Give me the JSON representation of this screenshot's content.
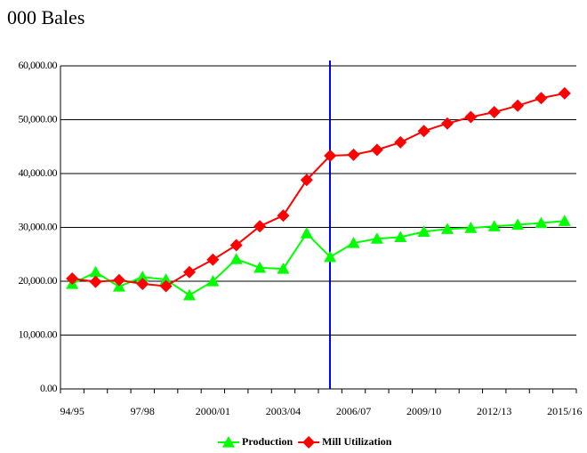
{
  "chart_data": {
    "type": "line",
    "title": "000 Bales",
    "categories": [
      "94/95",
      null,
      null,
      "97/98",
      null,
      null,
      "2000/01",
      null,
      null,
      "2003/04",
      null,
      null,
      "2006/07",
      null,
      null,
      "2009/10",
      null,
      null,
      "2012/13",
      null,
      null,
      "2015/16"
    ],
    "series": [
      {
        "name": "Production",
        "color": "#00ff00",
        "marker": "triangle",
        "values": [
          19500,
          21700,
          19000,
          20800,
          20300,
          17400,
          20000,
          24100,
          22500,
          22300,
          28900,
          24500,
          27100,
          27900,
          28200,
          29200,
          29700,
          29900,
          30200,
          30500,
          30800,
          31200
        ]
      },
      {
        "name": "Mill Utilization",
        "color": "#ff0000",
        "marker": "diamond",
        "values": [
          20500,
          19900,
          20200,
          19500,
          19100,
          21700,
          24000,
          26700,
          30200,
          32200,
          38800,
          43300,
          43500,
          44400,
          45800,
          47900,
          49300,
          50500,
          51400,
          52600,
          54000,
          54900
        ]
      }
    ],
    "ylim": [
      0,
      60000
    ],
    "yticks": [
      {
        "value": 0,
        "label": "0.00"
      },
      {
        "value": 10000,
        "label": "10,000.00"
      },
      {
        "value": 20000,
        "label": "20,000.00"
      },
      {
        "value": 30000,
        "label": "30,000.00"
      },
      {
        "value": 40000,
        "label": "40,000.00"
      },
      {
        "value": 50000,
        "label": "50,000.00"
      },
      {
        "value": 60000,
        "label": "60,000.00"
      }
    ],
    "grid": true,
    "legend": "bottom"
  }
}
